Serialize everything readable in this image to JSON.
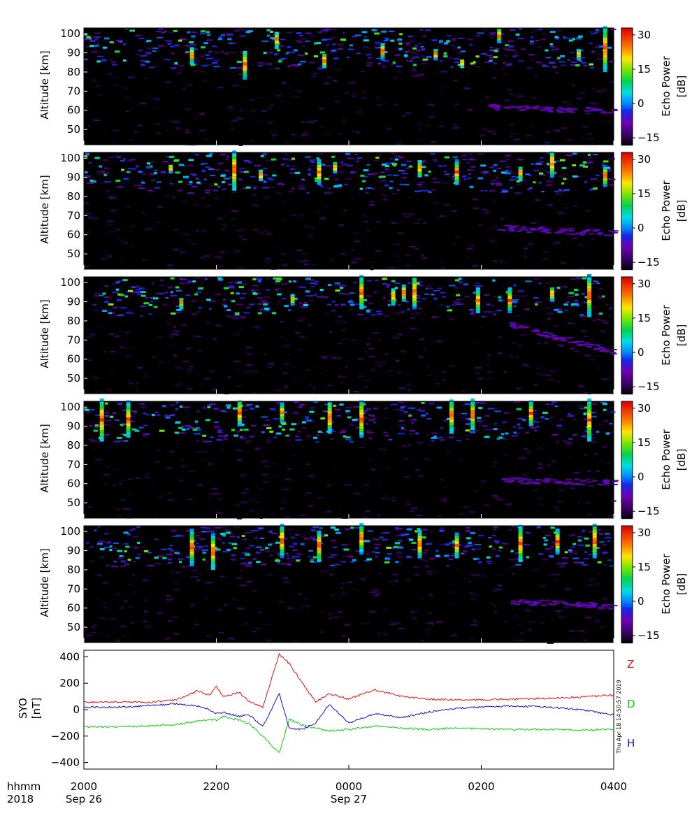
{
  "chart_data": {
    "radar_panels": [
      {
        "type": "heatmap",
        "ylabel": "Altitude [km]",
        "yticks": [
          "100",
          "90",
          "80",
          "70",
          "60",
          "50"
        ],
        "ylim": [
          42,
          103
        ],
        "colorbar": {
          "label": "Echo Power",
          "unit": "[dB]",
          "ticks": [
            "30",
            "15",
            "0",
            "−15"
          ],
          "range": [
            -18,
            33
          ]
        },
        "echoes": [
          [
            0.3,
            76,
            90
          ],
          [
            0.45,
            82,
            89
          ],
          [
            0.78,
            95,
            102
          ],
          [
            0.93,
            86,
            91
          ],
          [
            0.98,
            80,
            103
          ],
          [
            0.2,
            84,
            92
          ],
          [
            0.36,
            92,
            100
          ],
          [
            0.56,
            86,
            94
          ],
          [
            0.66,
            86,
            91
          ],
          [
            0.71,
            82,
            86
          ]
        ],
        "faint_layer": [
          0.76,
          1.0,
          62,
          60
        ]
      },
      {
        "type": "heatmap",
        "ylabel": "Altitude [km]",
        "yticks": [
          "100",
          "90",
          "80",
          "70",
          "60",
          "50"
        ],
        "ylim": [
          42,
          103
        ],
        "colorbar": {
          "label": "Echo Power",
          "unit": "[dB]",
          "ticks": [
            "30",
            "15",
            "0",
            "−15"
          ],
          "range": [
            -18,
            33
          ]
        },
        "echoes": [
          [
            0.28,
            83,
            103
          ],
          [
            0.33,
            88,
            93
          ],
          [
            0.44,
            86,
            98
          ],
          [
            0.63,
            90,
            98
          ],
          [
            0.88,
            90,
            103
          ],
          [
            0.98,
            85,
            95
          ],
          [
            0.16,
            92,
            96
          ],
          [
            0.47,
            92,
            97
          ],
          [
            0.7,
            86,
            98
          ],
          [
            0.82,
            88,
            95
          ]
        ],
        "faint_layer": [
          0.78,
          1.0,
          64,
          61
        ]
      },
      {
        "type": "heatmap",
        "ylabel": "Altitude [km]",
        "yticks": [
          "100",
          "90",
          "80",
          "70",
          "60",
          "50"
        ],
        "ylim": [
          42,
          103
        ],
        "colorbar": {
          "label": "Echo Power",
          "unit": "[dB]",
          "ticks": [
            "30",
            "15",
            "0",
            "−15"
          ],
          "range": [
            -18,
            33
          ]
        },
        "echoes": [
          [
            0.52,
            86,
            103
          ],
          [
            0.58,
            88,
            96
          ],
          [
            0.62,
            86,
            102
          ],
          [
            0.74,
            84,
            96
          ],
          [
            0.95,
            82,
            103
          ],
          [
            0.18,
            86,
            91
          ],
          [
            0.39,
            88,
            93
          ],
          [
            0.6,
            90,
            98
          ],
          [
            0.8,
            84,
            96
          ],
          [
            0.88,
            90,
            97
          ]
        ],
        "faint_layer": [
          0.8,
          1.0,
          78,
          64
        ]
      },
      {
        "type": "heatmap",
        "ylabel": "Altitude [km]",
        "yticks": [
          "100",
          "90",
          "80",
          "70",
          "60",
          "50"
        ],
        "ylim": [
          42,
          103
        ],
        "colorbar": {
          "label": "Echo Power",
          "unit": "[dB]",
          "ticks": [
            "30",
            "15",
            "0",
            "−15"
          ],
          "range": [
            -18,
            33
          ]
        },
        "echoes": [
          [
            0.03,
            82,
            103
          ],
          [
            0.29,
            90,
            103
          ],
          [
            0.52,
            84,
            103
          ],
          [
            0.73,
            88,
            103
          ],
          [
            0.95,
            82,
            103
          ],
          [
            0.46,
            86,
            102
          ],
          [
            0.69,
            86,
            103
          ],
          [
            0.84,
            90,
            102
          ],
          [
            0.08,
            84,
            102
          ],
          [
            0.37,
            92,
            101
          ]
        ],
        "faint_layer": [
          0.78,
          1.0,
          62,
          61
        ]
      },
      {
        "type": "heatmap",
        "ylabel": "Altitude [km]",
        "yticks": [
          "100",
          "90",
          "80",
          "70",
          "60",
          "50"
        ],
        "ylim": [
          42,
          103
        ],
        "colorbar": {
          "label": "Echo Power",
          "unit": "[dB]",
          "ticks": [
            "30",
            "15",
            "0",
            "−15"
          ],
          "range": [
            -18,
            33
          ]
        },
        "echoes": [
          [
            0.2,
            82,
            100
          ],
          [
            0.24,
            80,
            98
          ],
          [
            0.37,
            86,
            103
          ],
          [
            0.52,
            88,
            103
          ],
          [
            0.63,
            86,
            100
          ],
          [
            0.82,
            84,
            102
          ],
          [
            0.96,
            86,
            103
          ],
          [
            0.44,
            84,
            100
          ],
          [
            0.7,
            86,
            98
          ],
          [
            0.89,
            88,
            100
          ]
        ],
        "faint_layer": [
          0.8,
          1.0,
          64,
          61
        ]
      }
    ],
    "magnetometer": {
      "type": "line",
      "ylabel": "SYO",
      "yunit": "[nT]",
      "ylim": [
        -450,
        450
      ],
      "yticks": [
        "400",
        "200",
        "0",
        "−200",
        "−400"
      ],
      "x_hours": [
        0,
        0.5,
        1.0,
        1.4,
        1.7,
        1.9,
        2.0,
        2.1,
        2.35,
        2.5,
        2.7,
        2.95,
        3.1,
        3.3,
        3.5,
        3.7,
        4.0,
        4.4,
        4.8,
        5.2,
        5.6,
        6.0,
        6.5,
        7.0,
        7.5,
        8.0
      ],
      "series": [
        {
          "name": "Z",
          "color": "#e01010",
          "values": [
            55,
            60,
            55,
            75,
            140,
            110,
            175,
            100,
            130,
            60,
            20,
            420,
            350,
            200,
            60,
            120,
            80,
            150,
            100,
            80,
            75,
            75,
            80,
            85,
            95,
            110
          ]
        },
        {
          "name": "D",
          "color": "#10c810",
          "values": [
            -130,
            -130,
            -125,
            -110,
            -90,
            -75,
            -80,
            -50,
            -80,
            -110,
            -200,
            -330,
            -70,
            -120,
            -140,
            -160,
            -150,
            -125,
            -140,
            -150,
            -140,
            -145,
            -150,
            -150,
            -155,
            -150
          ]
        },
        {
          "name": "H",
          "color": "#1010d0",
          "values": [
            20,
            20,
            30,
            45,
            30,
            0,
            -30,
            -20,
            -50,
            -40,
            -130,
            120,
            -140,
            -150,
            -100,
            40,
            -100,
            -30,
            -60,
            -20,
            10,
            20,
            30,
            20,
            0,
            -40
          ]
        }
      ]
    },
    "x_axis": {
      "left_label_top": "hhmm",
      "left_label_bottom": "2018",
      "ticks": [
        {
          "label": "2000",
          "date": "Sep 26"
        },
        {
          "label": "2200",
          "date": ""
        },
        {
          "label": "0000",
          "date": "Sep 27"
        },
        {
          "label": "0200",
          "date": ""
        },
        {
          "label": "0400",
          "date": ""
        }
      ]
    },
    "timestamp": "Thu Apr 18 14:50:57 2019"
  }
}
